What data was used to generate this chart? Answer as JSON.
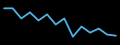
{
  "x": [
    0,
    1,
    2,
    3,
    4,
    5,
    6,
    7,
    8,
    9,
    10,
    11,
    12,
    13
  ],
  "y": [
    27,
    27,
    22,
    25,
    21,
    24,
    19,
    22,
    13,
    18,
    15,
    17,
    14,
    13.5
  ],
  "line_color": "#4db3e6",
  "line_width": 1.3,
  "background_color": "#000000"
}
